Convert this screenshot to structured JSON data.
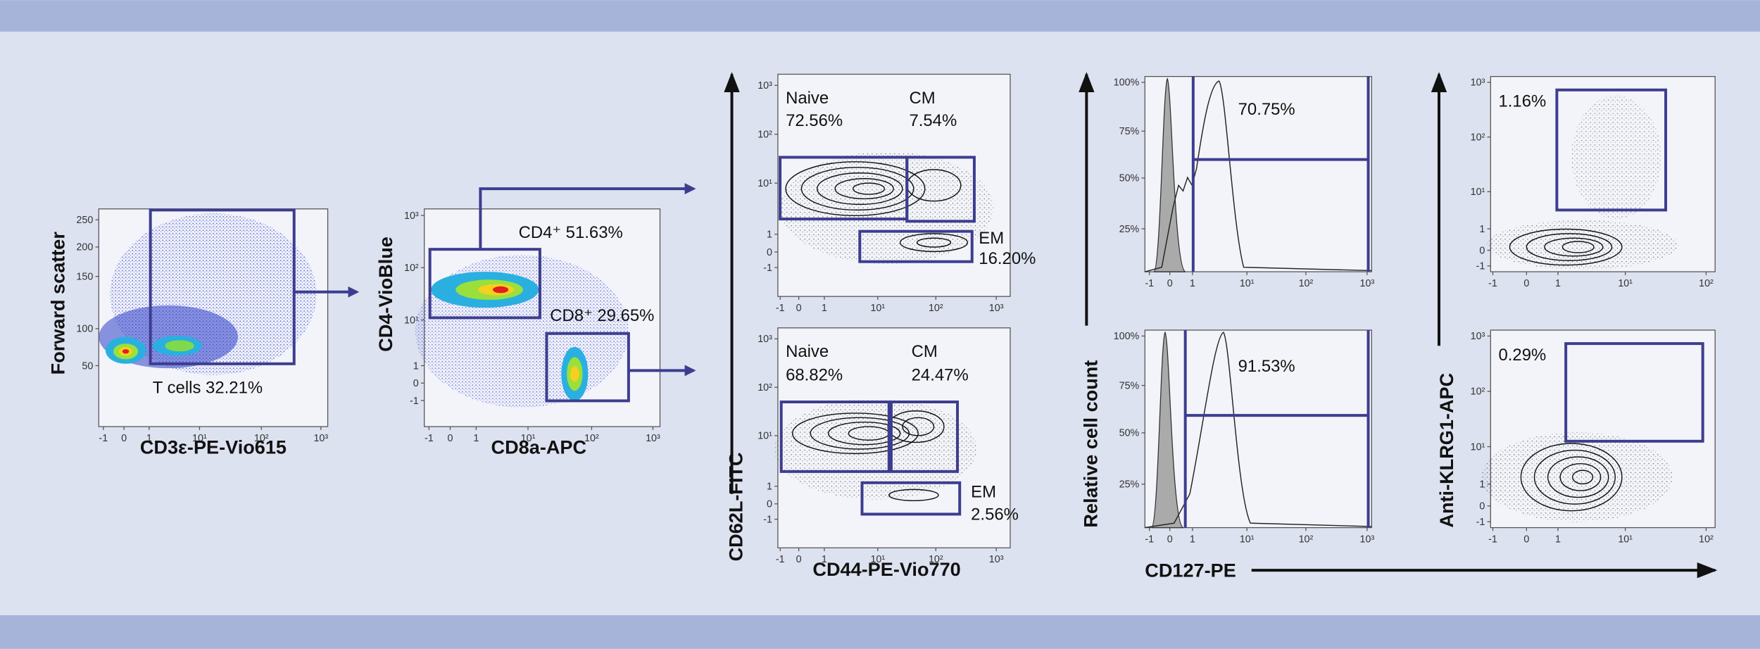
{
  "panels": [
    {
      "y_label": "Forward scatter",
      "x_label": "CD3ε-PE-Vio615",
      "x_ticks": [
        "-1",
        "0",
        "1",
        "10¹",
        "10²",
        "10³"
      ],
      "y_ticks": [
        "250",
        "200",
        "150",
        "100",
        "50"
      ],
      "gates": [
        "T cells 32.21%"
      ]
    },
    {
      "y_label": "CD4-VioBlue",
      "x_label": "CD8a-APC",
      "x_ticks": [
        "-1",
        "0",
        "1",
        "10¹",
        "10²",
        "10³"
      ],
      "y_ticks": [
        "10³",
        "10²",
        "10¹",
        "1",
        "0",
        "-1"
      ],
      "gates": [
        "CD4⁺ 51.63%",
        "CD8⁺ 29.65%"
      ]
    },
    {
      "y_label": "CD62L-FITC",
      "x_label": "CD44-PE-Vio770",
      "plots": [
        {
          "x_ticks": [
            "-1",
            "0",
            "1",
            "10¹",
            "10²",
            "10³"
          ],
          "y_ticks": [
            "10³",
            "10²",
            "10¹",
            "1",
            "0",
            "-1"
          ],
          "gates": [
            {
              "name": "Naive",
              "value": "72.56%"
            },
            {
              "name": "CM",
              "value": "7.54%"
            },
            {
              "name": "EM",
              "value": "16.20%"
            }
          ]
        },
        {
          "x_ticks": [
            "-1",
            "0",
            "1",
            "10¹",
            "10²",
            "10³"
          ],
          "y_ticks": [
            "10³",
            "10²",
            "10¹",
            "1",
            "0",
            "-1"
          ],
          "gates": [
            {
              "name": "Naive",
              "value": "68.82%"
            },
            {
              "name": "CM",
              "value": "24.47%"
            },
            {
              "name": "EM",
              "value": "2.56%"
            }
          ]
        }
      ]
    },
    {
      "y_label": "Relative cell count",
      "x_label": "CD127-PE",
      "plots": [
        {
          "x_ticks": [
            "-1",
            "0",
            "1",
            "10¹",
            "10²",
            "10³"
          ],
          "y_ticks": [
            "100%",
            "75%",
            "50%",
            "25%"
          ],
          "gates": [
            "70.75%"
          ]
        },
        {
          "x_ticks": [
            "-1",
            "0",
            "1",
            "10¹",
            "10²",
            "10³"
          ],
          "y_ticks": [
            "100%",
            "75%",
            "50%",
            "25%"
          ],
          "gates": [
            "91.53%"
          ]
        }
      ]
    },
    {
      "y_label": "Anti-KLRG1-APC",
      "plots": [
        {
          "x_ticks": [
            "-1",
            "0",
            "1",
            "10¹",
            "10²"
          ],
          "y_ticks": [
            "10³",
            "10²",
            "10¹",
            "1",
            "0",
            "-1"
          ],
          "gates": [
            "1.16%"
          ]
        },
        {
          "x_ticks": [
            "-1",
            "0",
            "1",
            "10¹",
            "10²"
          ],
          "y_ticks": [
            "10³",
            "10²",
            "10¹",
            "1",
            "0",
            "-1"
          ],
          "gates": [
            "0.29%"
          ]
        }
      ]
    }
  ]
}
